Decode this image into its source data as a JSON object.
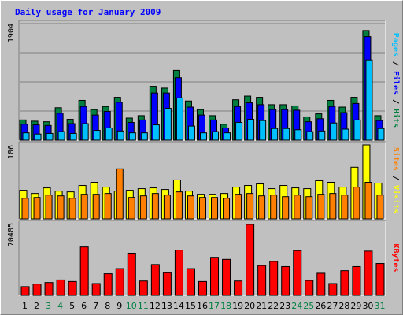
{
  "chart_data": {
    "type": "bar",
    "title": "Daily usage for January 2009",
    "colors": {
      "background": "#c0c0c0",
      "panel": "#c0c0c0",
      "title": "#0000ff",
      "hits": "#008040",
      "files": "#0000ff",
      "pages": "#00c0ff",
      "visits": "#ffff00",
      "sites": "#ff8000",
      "kbytes": "#ff0000",
      "weekend_label": "#008040",
      "weekday_label": "#000000"
    },
    "categories": [
      "1",
      "2",
      "3",
      "4",
      "5",
      "6",
      "7",
      "8",
      "9",
      "10",
      "11",
      "12",
      "13",
      "14",
      "15",
      "16",
      "17",
      "18",
      "19",
      "20",
      "21",
      "22",
      "23",
      "24",
      "25",
      "26",
      "27",
      "28",
      "29",
      "30",
      "31"
    ],
    "weekend_days": [
      "3",
      "4",
      "10",
      "11",
      "17",
      "18",
      "24",
      "25",
      "31"
    ],
    "panels": [
      {
        "name": "hits_files_pages",
        "ymax_label": "1904",
        "ylim": [
          0,
          1904
        ],
        "right_labels": [
          {
            "text": "Pages",
            "color": "#00c0ff"
          },
          {
            "text": " / ",
            "color": "#000000"
          },
          {
            "text": "Files",
            "color": "#0000ff"
          },
          {
            "text": " / ",
            "color": "#000000"
          },
          {
            "text": "Hits",
            "color": "#008040"
          }
        ],
        "series": [
          {
            "name": "Hits",
            "color": "#008040",
            "values": [
              330,
              310,
              300,
              530,
              340,
              650,
              500,
              550,
              700,
              360,
              400,
              880,
              850,
              1140,
              640,
              500,
              400,
              260,
              660,
              720,
              700,
              580,
              580,
              560,
              380,
              430,
              650,
              540,
              700,
              1790,
              400
            ]
          },
          {
            "name": "Files",
            "color": "#0000ff",
            "values": [
              260,
              250,
              240,
              440,
              270,
              550,
              410,
              470,
              620,
              290,
              330,
              770,
              770,
              1020,
              540,
              410,
              330,
              200,
              550,
              610,
              580,
              500,
              500,
              490,
              300,
              350,
              550,
              450,
              600,
              1690,
              320
            ]
          },
          {
            "name": "Pages",
            "color": "#00c0ff",
            "values": [
              120,
              100,
              110,
              140,
              110,
              270,
              160,
              200,
              150,
              120,
              120,
              250,
              520,
              690,
              230,
              120,
              140,
              120,
              290,
              340,
              320,
              190,
              190,
              170,
              140,
              150,
              280,
              180,
              330,
              1310,
              190
            ]
          }
        ]
      },
      {
        "name": "visits_sites",
        "ymax_label": "186",
        "ylim": [
          0,
          186
        ],
        "right_labels": [
          {
            "text": "Sites",
            "color": "#ff8000"
          },
          {
            "text": " / ",
            "color": "#000000"
          },
          {
            "text": "Visits",
            "color": "#ffff00"
          }
        ],
        "series": [
          {
            "name": "Visits",
            "color": "#ffff00",
            "values": [
              72,
              64,
              78,
              70,
              68,
              84,
              92,
              80,
              70,
              72,
              76,
              78,
              74,
              98,
              70,
              62,
              62,
              64,
              80,
              84,
              88,
              76,
              84,
              78,
              76,
              96,
              92,
              80,
              130,
              186,
              90
            ]
          },
          {
            "name": "Sites",
            "color": "#ff8000",
            "values": [
              52,
              54,
              60,
              58,
              52,
              62,
              62,
              64,
              126,
              54,
              58,
              64,
              60,
              68,
              58,
              54,
              54,
              52,
              62,
              64,
              58,
              60,
              56,
              60,
              56,
              62,
              64,
              60,
              80,
              92,
              60
            ]
          }
        ]
      },
      {
        "name": "kbytes",
        "ymax_label": "70485",
        "ylim": [
          0,
          70485
        ],
        "right_labels": [
          {
            "text": "KBytes",
            "color": "#ff0000"
          }
        ],
        "series": [
          {
            "name": "KBytes",
            "color": "#ff0000",
            "values": [
              8500,
              11000,
              12500,
              15000,
              13500,
              47000,
              11500,
              21000,
              26000,
              41000,
              14000,
              30000,
              22000,
              44000,
              26000,
              13500,
              37000,
              35000,
              14000,
              69000,
              29000,
              33000,
              28000,
              43500,
              14500,
              21500,
              11500,
              24000,
              28000,
              43000,
              31000
            ]
          }
        ]
      }
    ]
  }
}
